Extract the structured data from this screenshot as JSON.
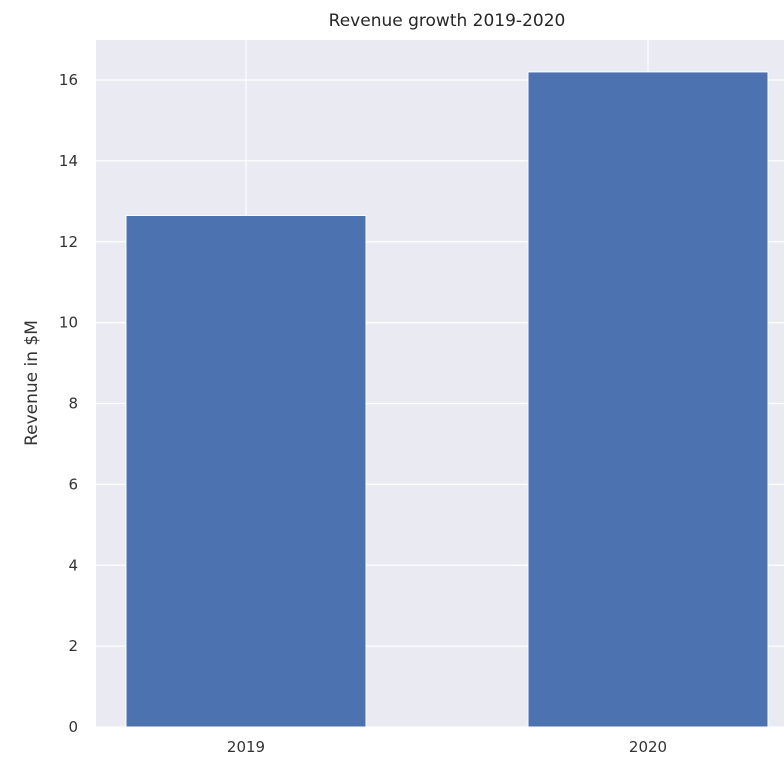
{
  "chart_data": {
    "type": "bar",
    "title": "Revenue growth 2019-2020",
    "xlabel": "",
    "ylabel": "Revenue in $M",
    "categories": [
      "2019",
      "2020"
    ],
    "values": [
      12.65,
      16.2
    ],
    "ylim": [
      0,
      17
    ],
    "yticks": [
      "0",
      "2",
      "4",
      "6",
      "8",
      "10",
      "12",
      "14",
      "16"
    ],
    "grid": true,
    "colors": {
      "bar": "#4c72b0",
      "plot_background": "#eaeaf2",
      "grid": "#ffffff"
    }
  }
}
